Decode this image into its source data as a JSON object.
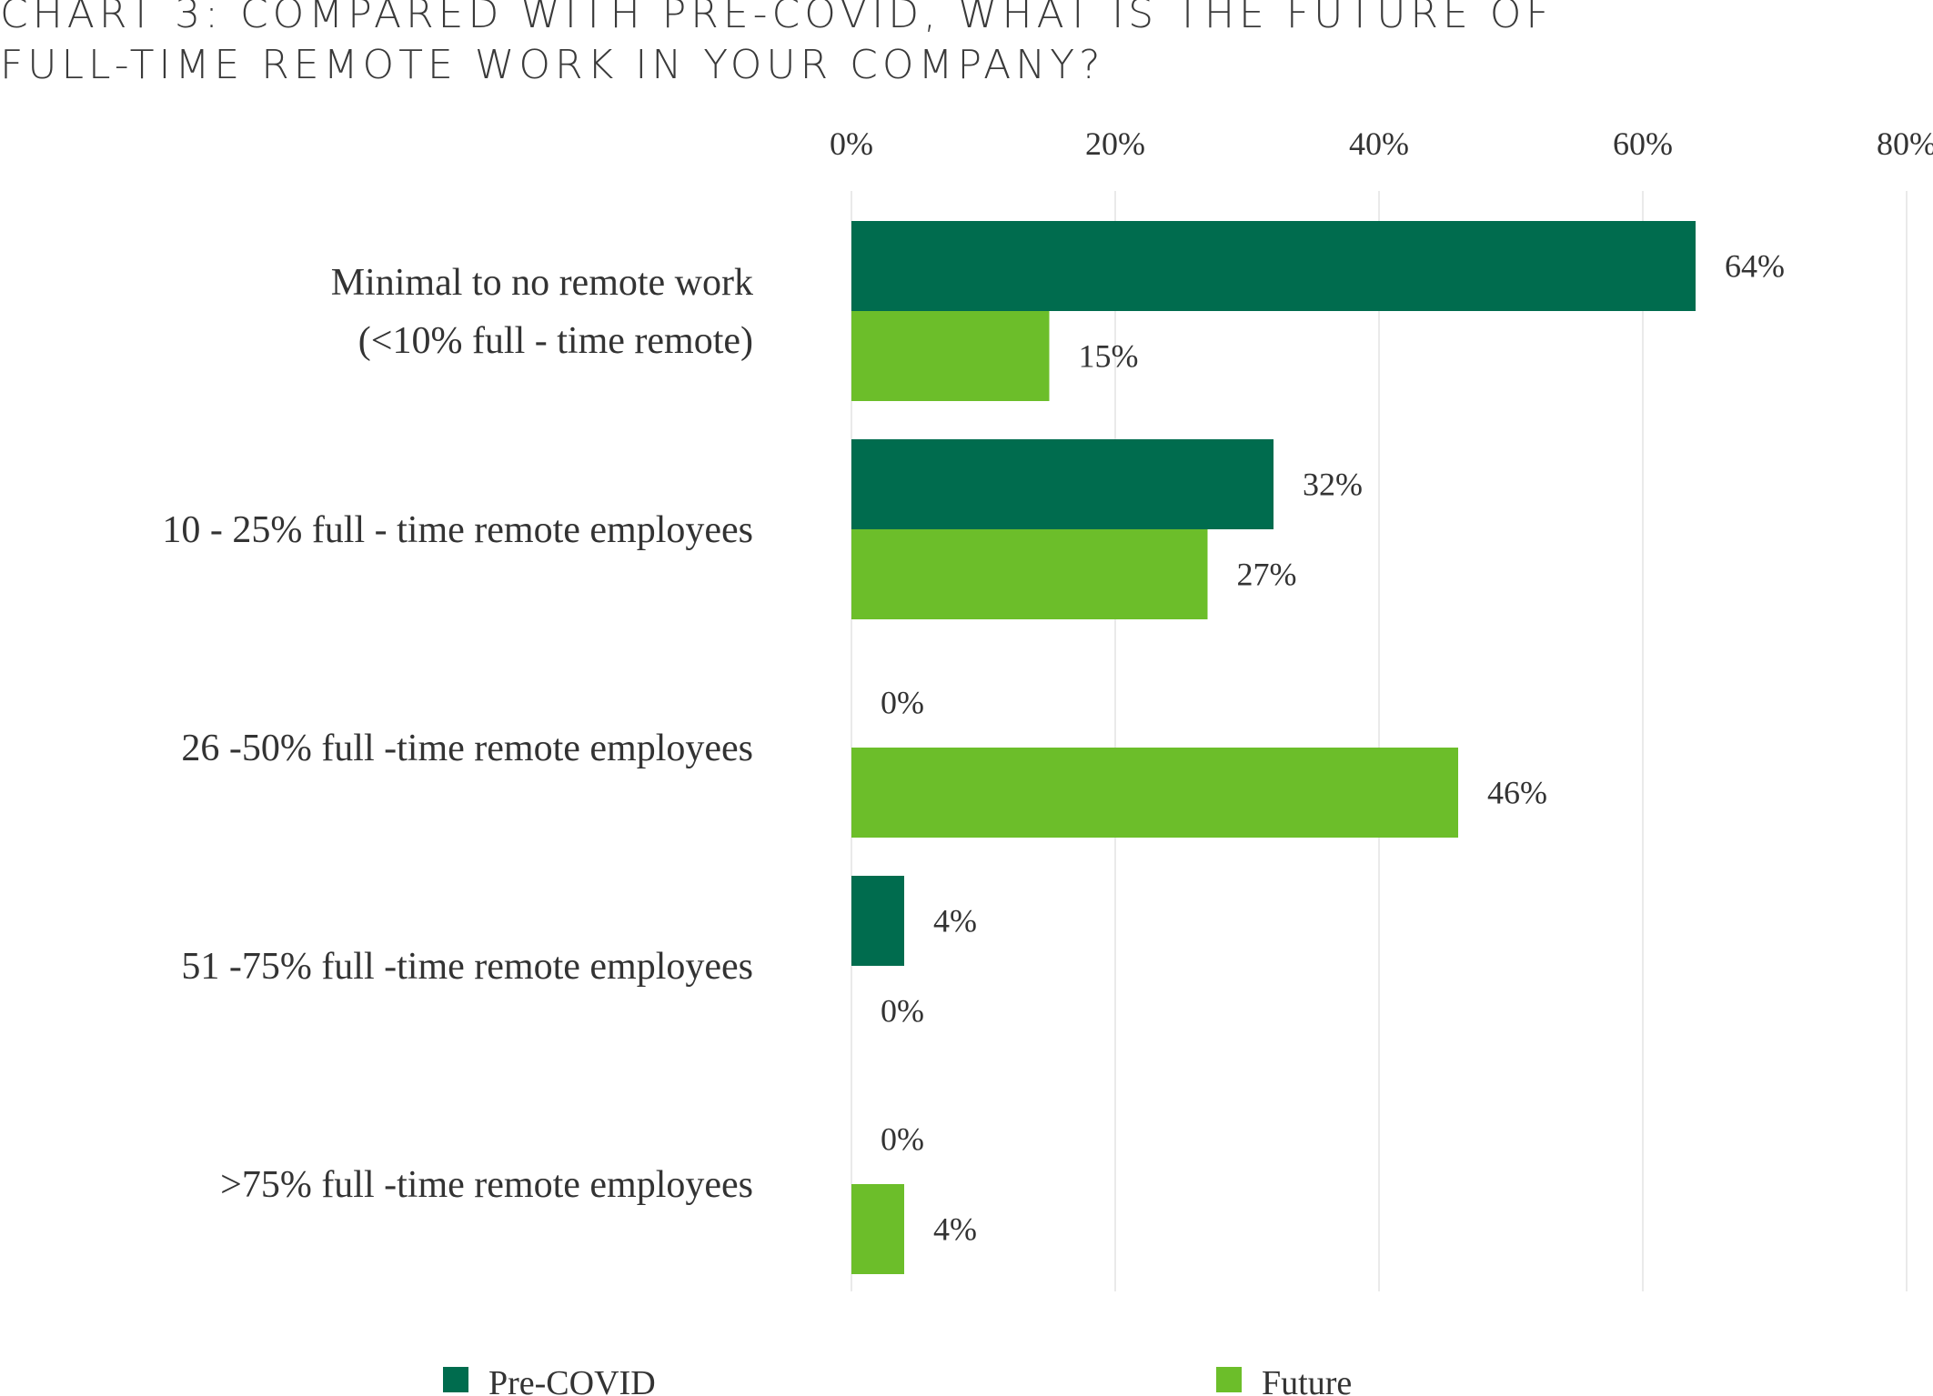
{
  "title": {
    "line1": "CHART 3: COMPARED WITH PRE-COVID, WHAT IS THE FUTURE OF",
    "line2": "FULL-TIME REMOTE WORK IN YOUR COMPANY?"
  },
  "chart_data": {
    "type": "bar",
    "orientation": "horizontal",
    "title": "CHART 3: COMPARED WITH PRE-COVID, WHAT IS THE FUTURE OF FULL-TIME REMOTE WORK IN YOUR COMPANY?",
    "categories": [
      [
        "Minimal to no remote work",
        "(<10% full - time remote)"
      ],
      [
        "10 - 25% full - time remote employees"
      ],
      [
        "26 -50% full -time remote employees"
      ],
      [
        "51 -75% full   -time remote employees"
      ],
      [
        ">75% full   -time remote employees"
      ]
    ],
    "series": [
      {
        "name": "Pre-COVID",
        "color": "#006c4e",
        "values": [
          64,
          32,
          0,
          4,
          0
        ],
        "labels": [
          "64%",
          "32%",
          "0%",
          "4%",
          "0%"
        ]
      },
      {
        "name": "Future",
        "color": "#6cbe2a",
        "values": [
          15,
          27,
          46,
          0,
          4
        ],
        "labels": [
          "15%",
          "27%",
          "46%",
          "0%",
          "4%"
        ]
      }
    ],
    "xlim": [
      0,
      80
    ],
    "xticks": [
      0,
      20,
      40,
      60,
      80
    ],
    "xtick_labels": [
      "0%",
      "20%",
      "40%",
      "60%",
      "80%"
    ],
    "x_axis_position": "top",
    "grid": true,
    "legend": "bottom"
  }
}
